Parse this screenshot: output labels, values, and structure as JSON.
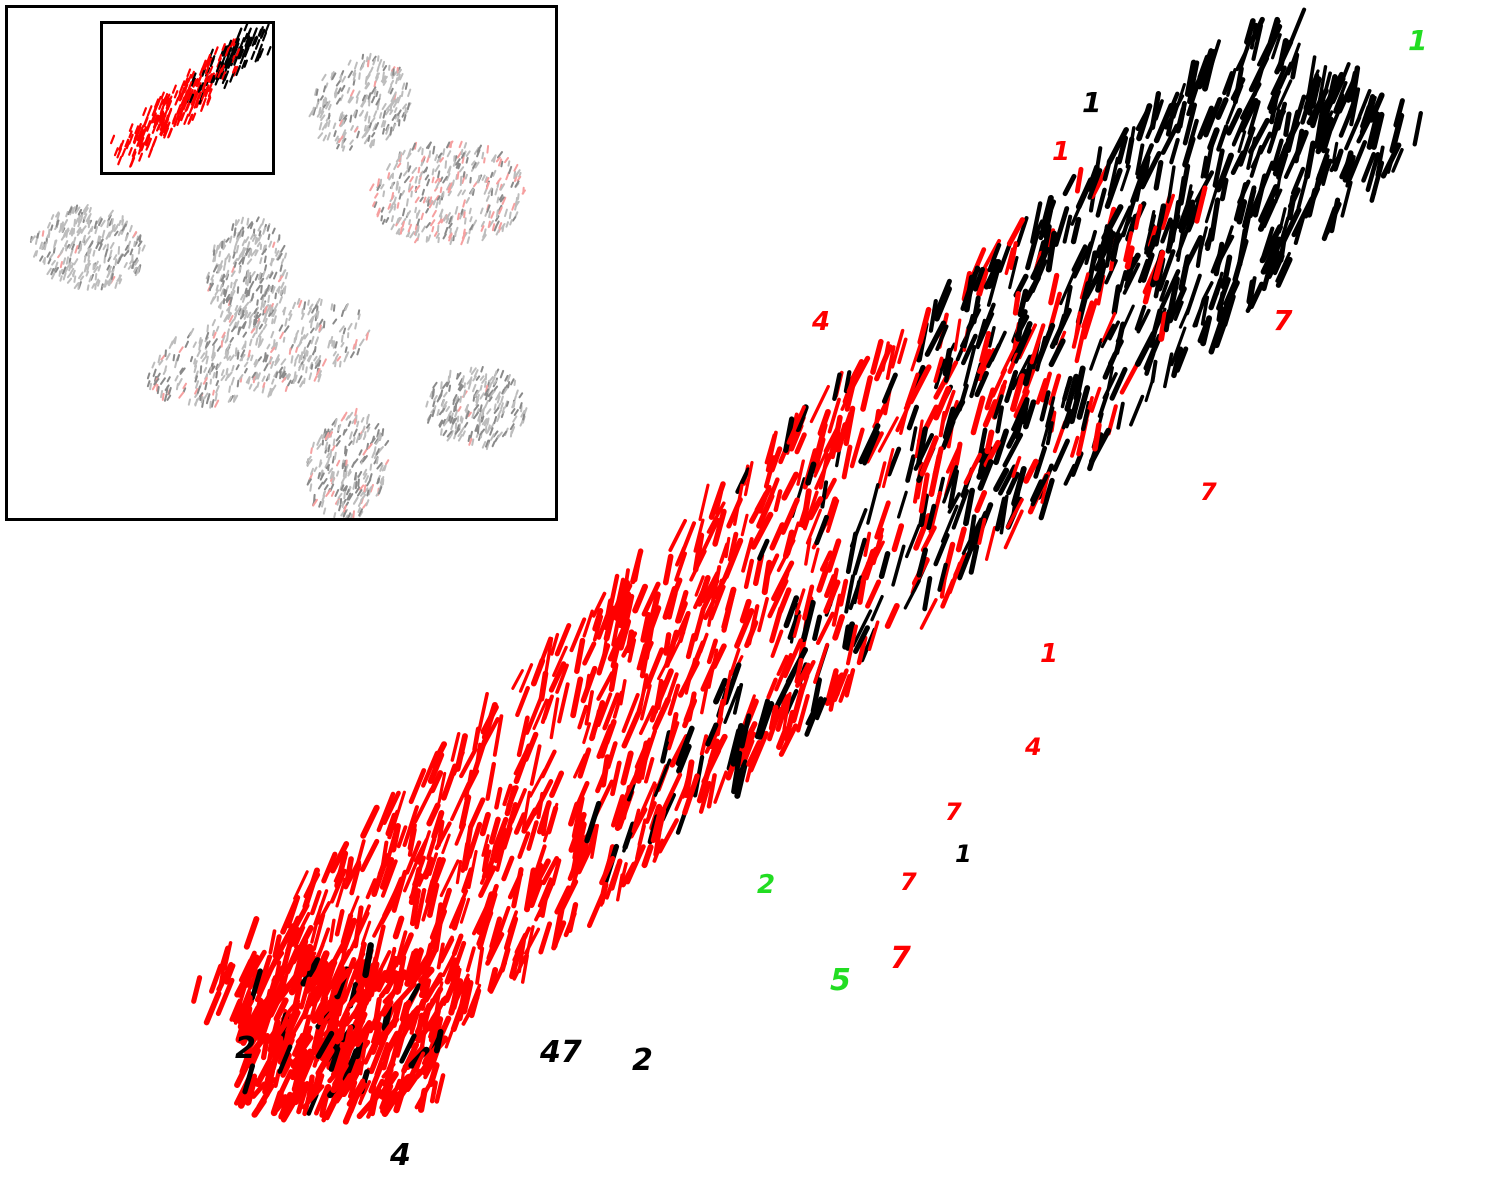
{
  "colors": {
    "red": "#ff0000",
    "black": "#000000",
    "green": "#22dd22",
    "grey": "#bdbdbd",
    "pink": "#f6a0a0",
    "background": "#ffffff"
  },
  "chart_data": {
    "type": "scatter",
    "description_kind": "t-SNE embedding of handwritten digit images (main view is a zoom of the highlighted cluster in the inset)",
    "series": [
      {
        "color": "red"
      },
      {
        "color": "black"
      },
      {
        "color": "green"
      }
    ],
    "labeled_glyphs": [
      {
        "text": "1",
        "color": "black"
      },
      {
        "text": "1",
        "color": "red"
      },
      {
        "text": "7",
        "color": "red"
      },
      {
        "text": "4",
        "color": "red"
      },
      {
        "text": "2",
        "color": "black"
      },
      {
        "text": "47",
        "color": "black"
      },
      {
        "text": "2",
        "color": "black"
      },
      {
        "text": "4",
        "color": "black"
      },
      {
        "text": "7",
        "color": "red"
      },
      {
        "text": "1",
        "color": "black"
      },
      {
        "text": "2",
        "color": "green"
      },
      {
        "text": "5",
        "color": "green"
      },
      {
        "text": "7",
        "color": "red"
      },
      {
        "text": "1",
        "color": "red"
      },
      {
        "text": "7",
        "color": "red"
      },
      {
        "text": "7",
        "color": "red"
      },
      {
        "text": "4",
        "color": "red"
      },
      {
        "text": "1",
        "color": "green"
      }
    ]
  }
}
